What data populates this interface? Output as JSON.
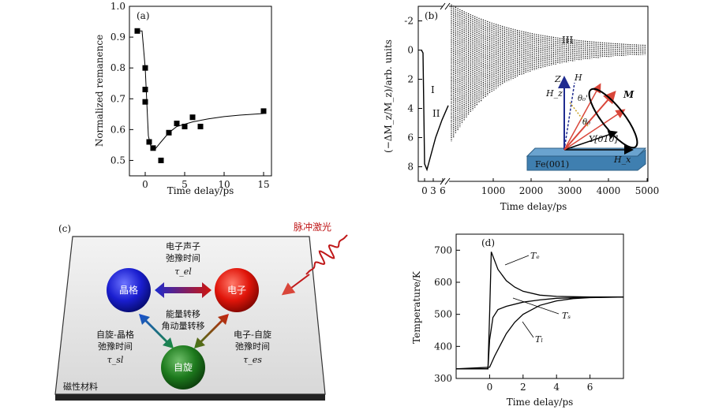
{
  "chart_data": [
    {
      "panel": "(a)",
      "type": "scatter",
      "xlabel": "Time delay/ps",
      "ylabel": "Normalized remanence",
      "xlim": [
        -2,
        16
      ],
      "ylim": [
        0.45,
        1.0
      ],
      "xticks": [
        0,
        5,
        10,
        15
      ],
      "yticks": [
        0.5,
        0.6,
        0.7,
        0.8,
        0.9,
        1.0
      ],
      "x": [
        -1,
        0,
        0,
        0,
        0.5,
        1,
        2,
        3,
        4,
        5,
        6,
        7,
        15
      ],
      "y": [
        0.92,
        0.8,
        0.73,
        0.69,
        0.56,
        0.54,
        0.5,
        0.59,
        0.62,
        0.61,
        0.64,
        0.61,
        0.66
      ],
      "fit": {
        "x": [
          -1,
          -0.4,
          0,
          0.4,
          0.8,
          1.2,
          2,
          3,
          4,
          6,
          8,
          10,
          12,
          15
        ],
        "y": [
          0.92,
          0.92,
          0.8,
          0.58,
          0.535,
          0.535,
          0.56,
          0.59,
          0.61,
          0.625,
          0.635,
          0.642,
          0.647,
          0.652
        ]
      }
    },
    {
      "panel": "(b)",
      "type": "line",
      "xlabel": "Time delay/ps",
      "ylabel": "(−ΔM_z/M_z)/arb. units",
      "xticks": [
        "0",
        "3",
        "6",
        "1000",
        "2000",
        "3000",
        "4000",
        "5000"
      ],
      "yticks": [
        "-2",
        "0",
        "2",
        "4",
        "6",
        "8"
      ],
      "ylim": [
        -3,
        9
      ],
      "y_inverted": true,
      "regions": [
        "I",
        "II",
        "III"
      ],
      "inset_labels": [
        "Z",
        "H",
        "H_z",
        "θ₀'",
        "θ₀",
        "M",
        "Y[010]",
        "Fe(001)",
        "H_x"
      ]
    },
    {
      "panel": "(c)",
      "type": "diagram",
      "laser": "脉冲激光",
      "nodes": [
        "晶格",
        "电子",
        "自旋"
      ],
      "center": [
        "能量转移",
        "角动量转移"
      ],
      "el": [
        "电子声子",
        "弛豫时间",
        "τ_el"
      ],
      "sl": [
        "自旋-晶格",
        "弛豫时间",
        "τ_sl"
      ],
      "es": [
        "电子-自旋",
        "弛豫时间",
        "τ_es"
      ],
      "material": "磁性材料"
    },
    {
      "panel": "(d)",
      "type": "line",
      "xlabel": "Time delay/ps",
      "ylabel": "Temperature/K",
      "xlim": [
        -2,
        8
      ],
      "ylim": [
        300,
        750
      ],
      "xticks": [
        0,
        2,
        4,
        6
      ],
      "yticks": [
        300,
        400,
        500,
        600,
        700
      ],
      "series": [
        {
          "name": "Tₑ",
          "x": [
            -2,
            -0.1,
            0,
            0.1,
            0.5,
            1,
            1.5,
            2,
            3,
            4,
            5,
            6,
            8
          ],
          "y": [
            330,
            330,
            500,
            695,
            640,
            605,
            585,
            572,
            560,
            556,
            555,
            554,
            554
          ]
        },
        {
          "name": "Tₛ",
          "x": [
            -2,
            -0.1,
            0,
            0.2,
            0.5,
            1,
            2,
            3,
            4,
            6,
            8
          ],
          "y": [
            330,
            330,
            420,
            490,
            515,
            525,
            538,
            545,
            550,
            553,
            554
          ]
        },
        {
          "name": "Tₗ",
          "x": [
            -2,
            0,
            0.3,
            0.7,
            1,
            1.5,
            2,
            3,
            4,
            5,
            6,
            8
          ],
          "y": [
            330,
            335,
            370,
            410,
            440,
            475,
            500,
            528,
            542,
            549,
            552,
            554
          ]
        }
      ]
    }
  ]
}
